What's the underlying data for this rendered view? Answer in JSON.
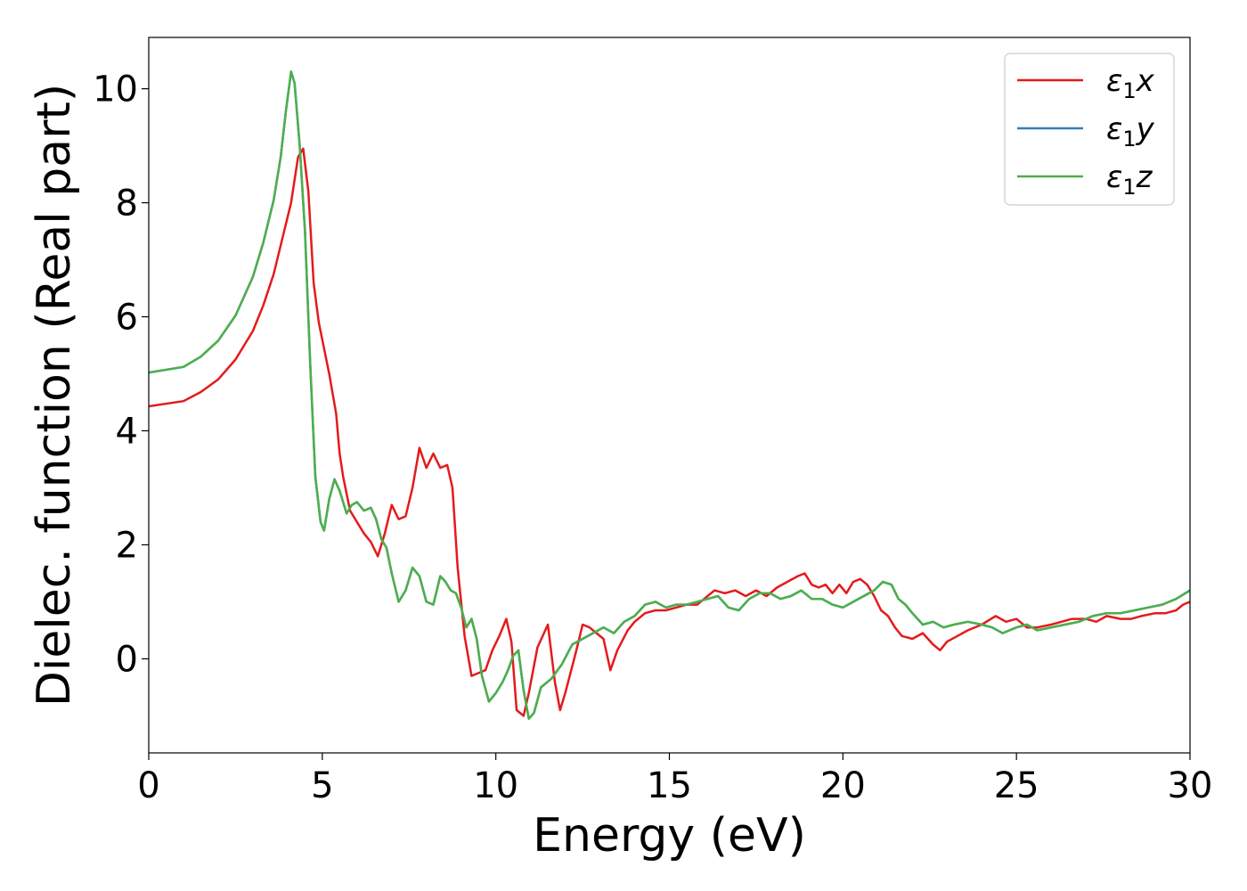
{
  "chart_data": {
    "type": "line",
    "title": "",
    "xlabel": "Energy (eV)",
    "ylabel": "Dielec. function (Real part)",
    "xlim": [
      0,
      30
    ],
    "ylim": [
      -1.65,
      10.9
    ],
    "xticks": [
      0,
      5,
      10,
      15,
      20,
      25,
      30
    ],
    "yticks": [
      0,
      2,
      4,
      6,
      8,
      10
    ],
    "grid": false,
    "legend_position": "top-right",
    "series": [
      {
        "name": "ε₁x",
        "legend_base": "ε",
        "legend_sub": "1",
        "legend_suffix": "x",
        "color": "#e41a1c",
        "x": [
          0,
          1,
          1.5,
          2,
          2.5,
          3,
          3.3,
          3.6,
          3.9,
          4.1,
          4.3,
          4.45,
          4.6,
          4.75,
          4.9,
          5.0,
          5.2,
          5.4,
          5.5,
          5.6,
          5.8,
          6.0,
          6.2,
          6.4,
          6.6,
          6.8,
          7.0,
          7.2,
          7.4,
          7.6,
          7.8,
          8.0,
          8.2,
          8.4,
          8.6,
          8.75,
          8.9,
          9.1,
          9.3,
          9.5,
          9.7,
          9.9,
          10.1,
          10.3,
          10.45,
          10.6,
          10.8,
          10.95,
          11.2,
          11.5,
          11.7,
          11.85,
          12.0,
          12.3,
          12.5,
          12.7,
          12.9,
          13.1,
          13.3,
          13.5,
          13.8,
          14.0,
          14.3,
          14.6,
          14.9,
          15.2,
          15.5,
          15.8,
          16.0,
          16.3,
          16.6,
          16.9,
          17.2,
          17.5,
          17.8,
          18.1,
          18.4,
          18.7,
          18.9,
          19.1,
          19.3,
          19.5,
          19.7,
          19.9,
          20.1,
          20.3,
          20.5,
          20.7,
          20.9,
          21.1,
          21.3,
          21.5,
          21.7,
          22.0,
          22.3,
          22.6,
          22.8,
          23.0,
          23.3,
          23.6,
          24.0,
          24.4,
          24.7,
          25.0,
          25.3,
          25.6,
          26.0,
          26.3,
          26.6,
          27.0,
          27.3,
          27.6,
          28.0,
          28.3,
          28.6,
          29.0,
          29.3,
          29.6,
          29.8,
          30.0
        ],
        "y": [
          4.43,
          4.52,
          4.68,
          4.9,
          5.25,
          5.75,
          6.2,
          6.75,
          7.5,
          8.0,
          8.8,
          8.95,
          8.2,
          6.6,
          5.9,
          5.6,
          5.0,
          4.3,
          3.6,
          3.2,
          2.6,
          2.4,
          2.2,
          2.05,
          1.8,
          2.2,
          2.7,
          2.45,
          2.5,
          3.0,
          3.7,
          3.35,
          3.6,
          3.35,
          3.4,
          3.0,
          1.6,
          0.4,
          -0.3,
          -0.25,
          -0.2,
          0.15,
          0.4,
          0.7,
          0.3,
          -0.9,
          -1.0,
          -0.6,
          0.2,
          0.6,
          -0.4,
          -0.9,
          -0.6,
          0.1,
          0.6,
          0.55,
          0.45,
          0.35,
          -0.2,
          0.15,
          0.5,
          0.65,
          0.8,
          0.85,
          0.85,
          0.9,
          0.95,
          0.95,
          1.05,
          1.2,
          1.15,
          1.2,
          1.1,
          1.2,
          1.1,
          1.25,
          1.35,
          1.45,
          1.5,
          1.3,
          1.25,
          1.3,
          1.15,
          1.3,
          1.15,
          1.35,
          1.4,
          1.3,
          1.1,
          0.85,
          0.75,
          0.55,
          0.4,
          0.35,
          0.45,
          0.25,
          0.15,
          0.3,
          0.4,
          0.5,
          0.6,
          0.75,
          0.65,
          0.7,
          0.55,
          0.55,
          0.6,
          0.65,
          0.7,
          0.7,
          0.65,
          0.75,
          0.7,
          0.7,
          0.75,
          0.8,
          0.8,
          0.85,
          0.95,
          1.0
        ]
      },
      {
        "name": "ε₁y",
        "legend_base": "ε",
        "legend_sub": "1",
        "legend_suffix": "y",
        "color": "#377eb8",
        "x": [
          0,
          1,
          1.5,
          2,
          2.5,
          3,
          3.3,
          3.6,
          3.8,
          3.95,
          4.1,
          4.2,
          4.35,
          4.5,
          4.65,
          4.8,
          4.95,
          5.05,
          5.2,
          5.35,
          5.5,
          5.7,
          5.85,
          6.0,
          6.2,
          6.4,
          6.55,
          6.7,
          6.85,
          7.0,
          7.2,
          7.4,
          7.6,
          7.8,
          8.0,
          8.2,
          8.4,
          8.55,
          8.7,
          8.85,
          9.0,
          9.15,
          9.3,
          9.45,
          9.6,
          9.8,
          10.0,
          10.2,
          10.35,
          10.5,
          10.65,
          10.8,
          10.95,
          11.1,
          11.3,
          11.6,
          11.9,
          12.2,
          12.5,
          12.8,
          13.1,
          13.4,
          13.7,
          14.0,
          14.3,
          14.6,
          14.9,
          15.2,
          15.5,
          15.8,
          16.1,
          16.4,
          16.7,
          17.0,
          17.3,
          17.6,
          17.9,
          18.2,
          18.5,
          18.8,
          19.1,
          19.4,
          19.7,
          20.0,
          20.3,
          20.6,
          20.9,
          21.15,
          21.4,
          21.6,
          21.8,
          22.0,
          22.3,
          22.6,
          22.9,
          23.2,
          23.6,
          24.0,
          24.3,
          24.6,
          25.0,
          25.3,
          25.6,
          26.0,
          26.4,
          26.8,
          27.2,
          27.6,
          28.0,
          28.4,
          28.8,
          29.2,
          29.6,
          30.0
        ],
        "y": [
          5.02,
          5.12,
          5.3,
          5.58,
          6.02,
          6.7,
          7.3,
          8.05,
          8.8,
          9.6,
          10.3,
          10.1,
          9.0,
          7.5,
          5.2,
          3.2,
          2.4,
          2.25,
          2.8,
          3.15,
          2.95,
          2.55,
          2.7,
          2.75,
          2.6,
          2.65,
          2.45,
          2.1,
          1.95,
          1.5,
          1.0,
          1.2,
          1.6,
          1.45,
          1.0,
          0.95,
          1.45,
          1.35,
          1.2,
          1.15,
          0.9,
          0.55,
          0.7,
          0.35,
          -0.3,
          -0.75,
          -0.6,
          -0.4,
          -0.2,
          0.05,
          0.15,
          -0.55,
          -1.05,
          -0.95,
          -0.5,
          -0.35,
          -0.1,
          0.25,
          0.35,
          0.45,
          0.55,
          0.45,
          0.65,
          0.75,
          0.95,
          1.0,
          0.9,
          0.95,
          0.95,
          1.0,
          1.05,
          1.1,
          0.9,
          0.85,
          1.05,
          1.15,
          1.15,
          1.05,
          1.1,
          1.2,
          1.05,
          1.05,
          0.95,
          0.9,
          1.0,
          1.1,
          1.2,
          1.35,
          1.3,
          1.05,
          0.95,
          0.8,
          0.6,
          0.65,
          0.55,
          0.6,
          0.65,
          0.6,
          0.55,
          0.45,
          0.55,
          0.6,
          0.5,
          0.55,
          0.6,
          0.65,
          0.75,
          0.8,
          0.8,
          0.85,
          0.9,
          0.95,
          1.05,
          1.2
        ]
      },
      {
        "name": "ε₁z",
        "legend_base": "ε",
        "legend_sub": "1",
        "legend_suffix": "z",
        "color": "#4daf4a",
        "x": [
          0,
          1,
          1.5,
          2,
          2.5,
          3,
          3.3,
          3.6,
          3.8,
          3.95,
          4.1,
          4.2,
          4.35,
          4.5,
          4.65,
          4.8,
          4.95,
          5.05,
          5.2,
          5.35,
          5.5,
          5.7,
          5.85,
          6.0,
          6.2,
          6.4,
          6.55,
          6.7,
          6.85,
          7.0,
          7.2,
          7.4,
          7.6,
          7.8,
          8.0,
          8.2,
          8.4,
          8.55,
          8.7,
          8.85,
          9.0,
          9.15,
          9.3,
          9.45,
          9.6,
          9.8,
          10.0,
          10.2,
          10.35,
          10.5,
          10.65,
          10.8,
          10.95,
          11.1,
          11.3,
          11.6,
          11.9,
          12.2,
          12.5,
          12.8,
          13.1,
          13.4,
          13.7,
          14.0,
          14.3,
          14.6,
          14.9,
          15.2,
          15.5,
          15.8,
          16.1,
          16.4,
          16.7,
          17.0,
          17.3,
          17.6,
          17.9,
          18.2,
          18.5,
          18.8,
          19.1,
          19.4,
          19.7,
          20.0,
          20.3,
          20.6,
          20.9,
          21.15,
          21.4,
          21.6,
          21.8,
          22.0,
          22.3,
          22.6,
          22.9,
          23.2,
          23.6,
          24.0,
          24.3,
          24.6,
          25.0,
          25.3,
          25.6,
          26.0,
          26.4,
          26.8,
          27.2,
          27.6,
          28.0,
          28.4,
          28.8,
          29.2,
          29.6,
          30.0
        ],
        "y": [
          5.02,
          5.12,
          5.3,
          5.58,
          6.02,
          6.7,
          7.3,
          8.05,
          8.8,
          9.6,
          10.3,
          10.1,
          9.0,
          7.5,
          5.2,
          3.2,
          2.4,
          2.25,
          2.8,
          3.15,
          2.95,
          2.55,
          2.7,
          2.75,
          2.6,
          2.65,
          2.45,
          2.1,
          1.95,
          1.5,
          1.0,
          1.2,
          1.6,
          1.45,
          1.0,
          0.95,
          1.45,
          1.35,
          1.2,
          1.15,
          0.9,
          0.55,
          0.7,
          0.35,
          -0.3,
          -0.75,
          -0.6,
          -0.4,
          -0.2,
          0.05,
          0.15,
          -0.55,
          -1.05,
          -0.95,
          -0.5,
          -0.35,
          -0.1,
          0.25,
          0.35,
          0.45,
          0.55,
          0.45,
          0.65,
          0.75,
          0.95,
          1.0,
          0.9,
          0.95,
          0.95,
          1.0,
          1.05,
          1.1,
          0.9,
          0.85,
          1.05,
          1.15,
          1.15,
          1.05,
          1.1,
          1.2,
          1.05,
          1.05,
          0.95,
          0.9,
          1.0,
          1.1,
          1.2,
          1.35,
          1.3,
          1.05,
          0.95,
          0.8,
          0.6,
          0.65,
          0.55,
          0.6,
          0.65,
          0.6,
          0.55,
          0.45,
          0.55,
          0.6,
          0.5,
          0.55,
          0.6,
          0.65,
          0.75,
          0.8,
          0.8,
          0.85,
          0.9,
          0.95,
          1.05,
          1.2
        ]
      }
    ]
  }
}
